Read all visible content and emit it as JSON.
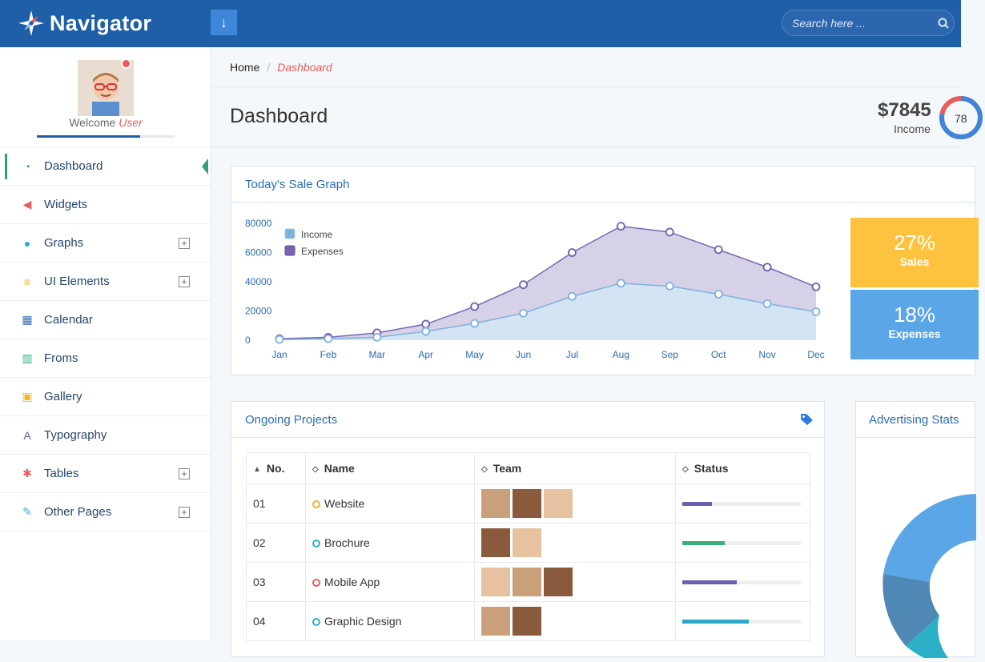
{
  "app": {
    "brand": "Navigator"
  },
  "header": {
    "search_placeholder": "Search here ..."
  },
  "profile": {
    "welcome": "Welcome",
    "user": "User",
    "progress": 0.75
  },
  "sidebar": {
    "items": [
      {
        "label": "Dashboard",
        "icon": "dashboard-gauge-icon",
        "color": "#2f9e7a",
        "active": true,
        "expandable": false
      },
      {
        "label": "Widgets",
        "icon": "megaphone-icon",
        "color": "#e85c5c",
        "expandable": false
      },
      {
        "label": "Graphs",
        "icon": "globe-icon",
        "color": "#2bb0c7",
        "expandable": true
      },
      {
        "label": "UI Elements",
        "icon": "layers-icon",
        "color": "#f2b51f",
        "expandable": true
      },
      {
        "label": "Calendar",
        "icon": "calendar-icon",
        "color": "#2c6cb5",
        "expandable": false
      },
      {
        "label": "Froms",
        "icon": "columns-icon",
        "color": "#2fae8c",
        "expandable": false
      },
      {
        "label": "Gallery",
        "icon": "image-icon",
        "color": "#f2b51f",
        "expandable": false
      },
      {
        "label": "Typography",
        "icon": "font-icon",
        "color": "#6a5aa8",
        "expandable": false
      },
      {
        "label": "Tables",
        "icon": "cogs-icon",
        "color": "#e85c5c",
        "expandable": true
      },
      {
        "label": "Other Pages",
        "icon": "edit-icon",
        "color": "#2bb0c7",
        "expandable": true
      }
    ]
  },
  "breadcrumb": {
    "home": "Home",
    "separator": "/",
    "current": "Dashboard"
  },
  "page": {
    "title": "Dashboard"
  },
  "income": {
    "amount": "$7845",
    "label": "Income",
    "ring_text": "78",
    "ring_percent": 78
  },
  "sale_graph": {
    "title": "Today's Sale Graph"
  },
  "chart_data": {
    "type": "area",
    "title": "Today's Sale Graph",
    "categories": [
      "Jan",
      "Feb",
      "Mar",
      "Apr",
      "May",
      "Jun",
      "Jul",
      "Aug",
      "Sep",
      "Oct",
      "Nov",
      "Dec"
    ],
    "ylim": [
      0,
      80000
    ],
    "yticks": [
      "80000",
      "60000",
      "40000",
      "20000",
      "0"
    ],
    "legend_position": "top-left",
    "series": [
      {
        "name": "Income",
        "color": "#7fb1dd",
        "values": [
          500,
          1000,
          2000,
          6000,
          11500,
          18500,
          30000,
          39000,
          37000,
          31500,
          25000,
          19500
        ]
      },
      {
        "name": "Expenses",
        "color": "#7a66b0",
        "values": [
          1000,
          2000,
          5000,
          11000,
          23000,
          38000,
          60000,
          78000,
          74000,
          62000,
          50000,
          36500
        ]
      }
    ]
  },
  "tiles": {
    "sales": {
      "value": "27%",
      "label": "Sales",
      "color": "#fdc33e"
    },
    "expenses": {
      "value": "18%",
      "label": "Expenses",
      "color": "#5aa6e6"
    }
  },
  "projects": {
    "title": "Ongoing Projects",
    "columns": [
      "No.",
      "Name",
      "Team",
      "Status"
    ],
    "rows": [
      {
        "no": "01",
        "name": "Website",
        "ring_color": "#f2b51f",
        "team_size": 3,
        "progress": 0.25,
        "bar_color": "#6f5fb0"
      },
      {
        "no": "02",
        "name": "Brochure",
        "ring_color": "#2bb0c7",
        "team_size": 2,
        "progress": 0.36,
        "bar_color": "#3fae7e"
      },
      {
        "no": "03",
        "name": "Mobile App",
        "ring_color": "#e85c5c",
        "team_size": 3,
        "progress": 0.46,
        "bar_color": "#6f5fb0"
      },
      {
        "no": "04",
        "name": "Graphic Design",
        "ring_color": "#2bb0c7",
        "team_size": 2,
        "progress": 0.56,
        "bar_color": "#2ba9c7"
      }
    ]
  },
  "advertising": {
    "title": "Advertising Stats"
  }
}
